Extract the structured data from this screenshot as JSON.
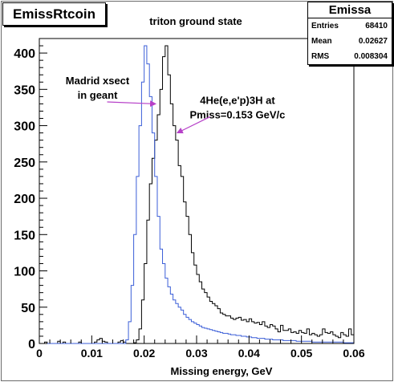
{
  "window": {
    "title": "EmissRtcoin"
  },
  "stats": {
    "name": "Emissa",
    "rows": [
      {
        "label": "Entries",
        "value": "68410"
      },
      {
        "label": "Mean",
        "value": "0.02627"
      },
      {
        "label": "RMS",
        "value": "0.008304"
      }
    ]
  },
  "chart_data": {
    "type": "line",
    "title": "triton ground state",
    "xlabel": "Missing energy, GeV",
    "ylabel": "",
    "xlim": [
      0,
      0.06
    ],
    "ylim": [
      0,
      420
    ],
    "x_ticks": [
      "0",
      "0.01",
      "0.02",
      "0.03",
      "0.04",
      "0.05",
      "0.06"
    ],
    "y_ticks": [
      "0",
      "50",
      "100",
      "150",
      "200",
      "250",
      "300",
      "350",
      "400"
    ],
    "grid": false,
    "colors": {
      "black_series": "#000000",
      "blue_series": "#3b5ed8",
      "arrow": "#b640c8"
    },
    "annotations": [
      {
        "text_lines": [
          "Madrid xsect",
          "in geant"
        ],
        "x": 0.0111,
        "y": 357,
        "arrow_to": [
          0.0222,
          330
        ]
      },
      {
        "text_lines": [
          "4He(e,e'p)3H at",
          "Pmiss=0.153 GeV/c"
        ],
        "x": 0.0378,
        "y": 330,
        "arrow_to": [
          0.0263,
          290
        ]
      }
    ],
    "series": [
      {
        "color": "#000000",
        "x": [
          0.0,
          0.0005,
          0.001,
          0.0015,
          0.002,
          0.0025,
          0.003,
          0.0035,
          0.004,
          0.0045,
          0.005,
          0.0055,
          0.006,
          0.0065,
          0.007,
          0.0075,
          0.008,
          0.0085,
          0.009,
          0.0095,
          0.01,
          0.0105,
          0.011,
          0.0115,
          0.012,
          0.0125,
          0.013,
          0.0135,
          0.014,
          0.0145,
          0.015,
          0.0155,
          0.016,
          0.0165,
          0.017,
          0.0175,
          0.018,
          0.0185,
          0.019,
          0.0195,
          0.02,
          0.0205,
          0.021,
          0.0215,
          0.022,
          0.0225,
          0.023,
          0.0235,
          0.024,
          0.0245,
          0.025,
          0.0255,
          0.026,
          0.0265,
          0.027,
          0.0275,
          0.028,
          0.0285,
          0.029,
          0.0295,
          0.03,
          0.0305,
          0.031,
          0.0315,
          0.032,
          0.0325,
          0.033,
          0.0335,
          0.034,
          0.0345,
          0.035,
          0.0355,
          0.036,
          0.0365,
          0.037,
          0.0375,
          0.038,
          0.0385,
          0.039,
          0.0395,
          0.04,
          0.0405,
          0.041,
          0.0415,
          0.042,
          0.0425,
          0.043,
          0.0435,
          0.044,
          0.0445,
          0.045,
          0.0455,
          0.046,
          0.0465,
          0.047,
          0.0475,
          0.048,
          0.0485,
          0.049,
          0.0495,
          0.05,
          0.0505,
          0.051,
          0.0515,
          0.052,
          0.0525,
          0.053,
          0.0535,
          0.054,
          0.0545,
          0.055,
          0.0555,
          0.056,
          0.0565,
          0.057,
          0.0575,
          0.058,
          0.0585,
          0.059,
          0.0595
        ],
        "y": [
          0,
          0,
          2,
          0,
          0,
          0,
          0,
          3,
          0,
          2,
          0,
          0,
          0,
          0,
          0,
          2,
          0,
          0,
          0,
          0,
          0,
          2,
          5,
          7,
          3,
          2,
          0,
          0,
          0,
          0,
          2,
          4,
          2,
          0,
          0,
          0,
          1,
          5,
          20,
          60,
          110,
          170,
          220,
          255,
          280,
          315,
          350,
          395,
          410,
          370,
          330,
          300,
          280,
          245,
          230,
          195,
          175,
          150,
          125,
          108,
          95,
          85,
          75,
          70,
          64,
          58,
          55,
          52,
          48,
          42,
          40,
          38,
          38,
          35,
          33,
          35,
          36,
          32,
          33,
          30,
          34,
          30,
          28,
          29,
          26,
          30,
          24,
          22,
          26,
          24,
          20,
          16,
          25,
          18,
          18,
          20,
          15,
          16,
          14,
          18,
          15,
          14,
          20,
          12,
          14,
          12,
          10,
          12,
          20,
          15,
          14,
          16,
          12,
          10,
          8,
          15,
          12,
          10,
          20,
          12
        ]
      },
      {
        "color": "#3b5ed8",
        "x": [
          0.0,
          0.0005,
          0.001,
          0.0015,
          0.002,
          0.0025,
          0.003,
          0.0035,
          0.004,
          0.0045,
          0.005,
          0.0055,
          0.006,
          0.0065,
          0.007,
          0.0075,
          0.008,
          0.0085,
          0.009,
          0.0095,
          0.01,
          0.0105,
          0.011,
          0.0115,
          0.012,
          0.0125,
          0.013,
          0.0135,
          0.014,
          0.0145,
          0.015,
          0.0155,
          0.016,
          0.0165,
          0.017,
          0.0175,
          0.018,
          0.0185,
          0.019,
          0.0195,
          0.02,
          0.0205,
          0.021,
          0.0215,
          0.022,
          0.0225,
          0.023,
          0.0235,
          0.024,
          0.0245,
          0.025,
          0.0255,
          0.026,
          0.0265,
          0.027,
          0.0275,
          0.028,
          0.0285,
          0.029,
          0.0295,
          0.03,
          0.0305,
          0.031,
          0.0315,
          0.032,
          0.0325,
          0.033,
          0.0335,
          0.034,
          0.0345,
          0.035,
          0.0355,
          0.036,
          0.0365,
          0.037,
          0.0375,
          0.038,
          0.0385,
          0.039,
          0.0395,
          0.04,
          0.0405,
          0.041,
          0.0415,
          0.042,
          0.0425,
          0.043,
          0.0435,
          0.044,
          0.0445,
          0.045,
          0.0455,
          0.046,
          0.0465,
          0.047,
          0.0475,
          0.048,
          0.0485,
          0.049,
          0.0495,
          0.05,
          0.0505,
          0.051,
          0.0515,
          0.052,
          0.0525,
          0.053,
          0.0535,
          0.054,
          0.0545,
          0.055,
          0.0555,
          0.056,
          0.0565,
          0.057,
          0.0575,
          0.058,
          0.0585,
          0.059,
          0.0595
        ],
        "y": [
          0,
          0,
          0,
          0,
          0,
          0,
          0,
          0,
          0,
          0,
          0,
          0,
          0,
          0,
          0,
          0,
          0,
          0,
          0,
          0,
          0,
          0,
          0,
          0,
          0,
          0,
          0,
          0,
          0,
          0,
          0,
          0,
          0,
          5,
          30,
          80,
          150,
          230,
          300,
          360,
          410,
          385,
          340,
          290,
          230,
          175,
          130,
          110,
          90,
          78,
          68,
          60,
          55,
          50,
          46,
          40,
          36,
          33,
          30,
          28,
          26,
          24,
          22,
          21,
          20,
          19,
          18,
          17,
          16,
          15,
          14,
          14,
          13,
          12,
          12,
          11,
          11,
          10,
          10,
          9,
          9,
          8,
          8,
          7,
          7,
          7,
          6,
          6,
          6,
          5,
          5,
          5,
          5,
          4,
          4,
          4,
          4,
          4,
          3,
          3,
          3,
          3,
          3,
          3,
          2,
          2,
          2,
          2,
          2,
          2,
          2,
          2,
          2,
          2,
          2,
          2,
          1,
          1,
          1,
          1
        ]
      }
    ]
  }
}
